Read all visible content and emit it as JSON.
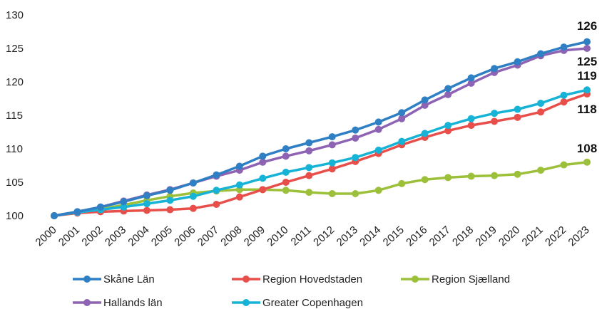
{
  "chart_data": {
    "type": "line",
    "title": "",
    "xlabel": "",
    "ylabel": "",
    "ylim": [
      100,
      130
    ],
    "yticks": [
      "100",
      "105",
      "110",
      "115",
      "120",
      "125",
      "130"
    ],
    "x": [
      "2000",
      "2001",
      "2002",
      "2003",
      "2004",
      "2005",
      "2006",
      "2007",
      "2008",
      "2009",
      "2010",
      "2011",
      "2012",
      "2013",
      "2014",
      "2015",
      "2016",
      "2017",
      "2018",
      "2019",
      "2020",
      "2021",
      "2022",
      "2023"
    ],
    "grid": false,
    "legend_position": "bottom",
    "series": [
      {
        "name": "Skåne Län",
        "color": "#2e7fc3",
        "values": [
          100,
          100.6,
          101.3,
          102.1,
          103.0,
          103.8,
          104.9,
          106.1,
          107.4,
          108.9,
          110.0,
          110.9,
          111.8,
          112.8,
          114.0,
          115.4,
          117.3,
          119.0,
          120.6,
          122.0,
          123.0,
          124.2,
          125.2,
          126.0
        ],
        "end_label": "126"
      },
      {
        "name": "Region Hovedstaden",
        "color": "#e84f4b",
        "values": [
          100,
          100.4,
          100.6,
          100.7,
          100.8,
          100.9,
          101.1,
          101.7,
          102.8,
          103.9,
          105.0,
          106.0,
          107.0,
          108.1,
          109.3,
          110.6,
          111.7,
          112.7,
          113.5,
          114.1,
          114.7,
          115.5,
          117.0,
          118.2
        ],
        "end_label": "118"
      },
      {
        "name": "Region Sjælland",
        "color": "#9dc03b",
        "values": [
          100,
          100.5,
          101.0,
          101.6,
          102.3,
          102.9,
          103.4,
          103.7,
          103.9,
          103.9,
          103.8,
          103.5,
          103.3,
          103.3,
          103.8,
          104.8,
          105.4,
          105.7,
          105.9,
          106.0,
          106.2,
          106.8,
          107.6,
          108.0
        ],
        "end_label": "108"
      },
      {
        "name": "Hallands län",
        "color": "#8e63b3",
        "values": [
          100,
          100.6,
          101.3,
          102.2,
          103.1,
          103.9,
          104.9,
          105.9,
          106.8,
          108.0,
          108.9,
          109.7,
          110.6,
          111.6,
          112.9,
          114.5,
          116.5,
          118.1,
          119.8,
          121.4,
          122.5,
          123.9,
          124.7,
          125.0
        ],
        "end_label": "125"
      },
      {
        "name": "Greater Copenhagen",
        "color": "#16b3d6",
        "values": [
          100,
          100.5,
          100.9,
          101.3,
          101.8,
          102.3,
          102.9,
          103.8,
          104.6,
          105.6,
          106.5,
          107.2,
          107.9,
          108.7,
          109.8,
          111.1,
          112.3,
          113.5,
          114.5,
          115.3,
          115.9,
          116.8,
          118.0,
          118.8
        ],
        "end_label": "119"
      }
    ],
    "legend_order": [
      0,
      1,
      2,
      3,
      4
    ]
  }
}
